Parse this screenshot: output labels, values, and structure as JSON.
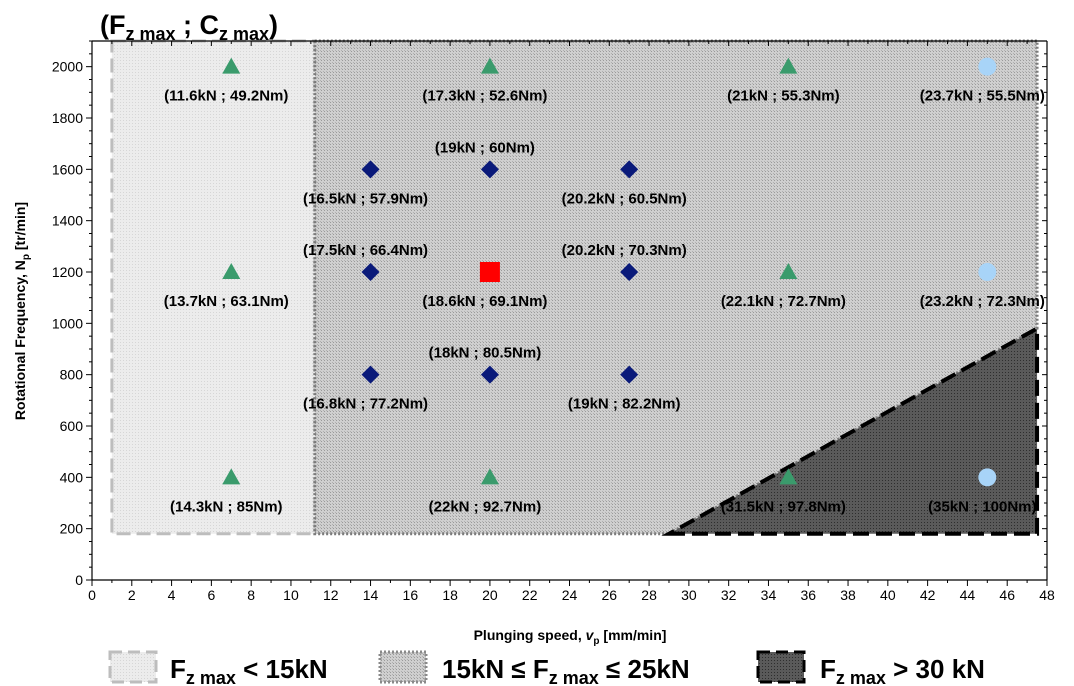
{
  "chart_data": {
    "type": "scatter",
    "title": {
      "main": "(F",
      "sub1": "z max",
      "mid": " ; C",
      "sub2": "z max",
      "end": ")"
    },
    "xlabel": {
      "main": "Plunging speed, ",
      "var": "v",
      "sub": "p",
      "unit": " [mm/min]"
    },
    "ylabel": {
      "main": "Rotational Frequency, N",
      "sub": "p",
      "unit": " [tr/min]"
    },
    "xlim": [
      0,
      48
    ],
    "ylim": [
      0,
      2100
    ],
    "xticks": [
      "0",
      "2",
      "4",
      "6",
      "8",
      "10",
      "12",
      "14",
      "16",
      "18",
      "20",
      "22",
      "24",
      "26",
      "28",
      "30",
      "32",
      "34",
      "36",
      "38",
      "40",
      "42",
      "44",
      "46",
      "48"
    ],
    "yticks": [
      "0",
      "200",
      "400",
      "600",
      "800",
      "1000",
      "1200",
      "1400",
      "1600",
      "1800",
      "2000"
    ],
    "colors": {
      "triangle": "#3a9b6c",
      "diamond": "#0a1a7a",
      "square": "#ff0000",
      "circle": "#a8d4f8",
      "zone_low": "#e9e9e9",
      "zone_mid": "#c4c4c4",
      "zone_high": "#4a4a4a"
    },
    "zones": [
      {
        "name": "low",
        "x": [
          1,
          11.2
        ],
        "y": [
          180,
          2100
        ]
      },
      {
        "name": "mid",
        "x": [
          11.2,
          47.5
        ],
        "y": [
          180,
          2100
        ]
      },
      {
        "name": "high",
        "polygon": [
          [
            29,
            180
          ],
          [
            47.5,
            180
          ],
          [
            47.5,
            980
          ]
        ]
      }
    ],
    "points": [
      {
        "marker": "triangle",
        "x": 7,
        "y": 2000,
        "label": "(11.6kN ; 49.2Nm)",
        "pos": "below"
      },
      {
        "marker": "triangle",
        "x": 20,
        "y": 2000,
        "label": "(17.3kN ; 52.6Nm)",
        "pos": "below"
      },
      {
        "marker": "triangle",
        "x": 35,
        "y": 2000,
        "label": "(21kN ; 55.3Nm)",
        "pos": "below"
      },
      {
        "marker": "circle",
        "x": 45,
        "y": 2000,
        "label": "(23.7kN ; 55.5Nm)",
        "pos": "below"
      },
      {
        "marker": "diamond",
        "x": 14,
        "y": 1600,
        "label": "(16.5kN ; 57.9Nm)",
        "pos": "below"
      },
      {
        "marker": "diamond",
        "x": 20,
        "y": 1600,
        "label": "(19kN ; 60Nm)",
        "pos": "above"
      },
      {
        "marker": "diamond",
        "x": 27,
        "y": 1600,
        "label": "(20.2kN ; 60.5Nm)",
        "pos": "below"
      },
      {
        "marker": "diamond",
        "x": 14,
        "y": 1200,
        "label": "(17.5kN ; 66.4Nm)",
        "pos": "above"
      },
      {
        "marker": "square",
        "x": 20,
        "y": 1200,
        "label": "(18.6kN ; 69.1Nm)",
        "pos": "below"
      },
      {
        "marker": "diamond",
        "x": 27,
        "y": 1200,
        "label": "(20.2kN ; 70.3Nm)",
        "pos": "above"
      },
      {
        "marker": "triangle",
        "x": 7,
        "y": 1200,
        "label": "(13.7kN ; 63.1Nm)",
        "pos": "below"
      },
      {
        "marker": "triangle",
        "x": 35,
        "y": 1200,
        "label": "(22.1kN ; 72.7Nm)",
        "pos": "below"
      },
      {
        "marker": "circle",
        "x": 45,
        "y": 1200,
        "label": "(23.2kN ; 72.3Nm)",
        "pos": "below"
      },
      {
        "marker": "diamond",
        "x": 14,
        "y": 800,
        "label": "(16.8kN ; 77.2Nm)",
        "pos": "below"
      },
      {
        "marker": "diamond",
        "x": 20,
        "y": 800,
        "label": "(18kN ; 80.5Nm)",
        "pos": "above"
      },
      {
        "marker": "diamond",
        "x": 27,
        "y": 800,
        "label": "(19kN ; 82.2Nm)",
        "pos": "below"
      },
      {
        "marker": "triangle",
        "x": 7,
        "y": 400,
        "label": "(14.3kN ; 85Nm)",
        "pos": "below"
      },
      {
        "marker": "triangle",
        "x": 20,
        "y": 400,
        "label": "(22kN ; 92.7Nm)",
        "pos": "below"
      },
      {
        "marker": "triangle",
        "x": 35,
        "y": 400,
        "label": "(31.5kN ; 97.8Nm)",
        "pos": "below"
      },
      {
        "marker": "circle",
        "x": 45,
        "y": 400,
        "label": "(35kN ; 100Nm)",
        "pos": "below"
      }
    ],
    "legend": {
      "placement": "bottom",
      "items": [
        {
          "zone": "low",
          "pre": "F",
          "sub": "z max",
          "post": " < 15kN"
        },
        {
          "zone": "mid",
          "pre": "15kN ≤ F",
          "sub": "z max",
          "post": " ≤ 25kN"
        },
        {
          "zone": "high",
          "pre": "F",
          "sub": "z max",
          "post": " > 30 kN"
        }
      ]
    }
  }
}
